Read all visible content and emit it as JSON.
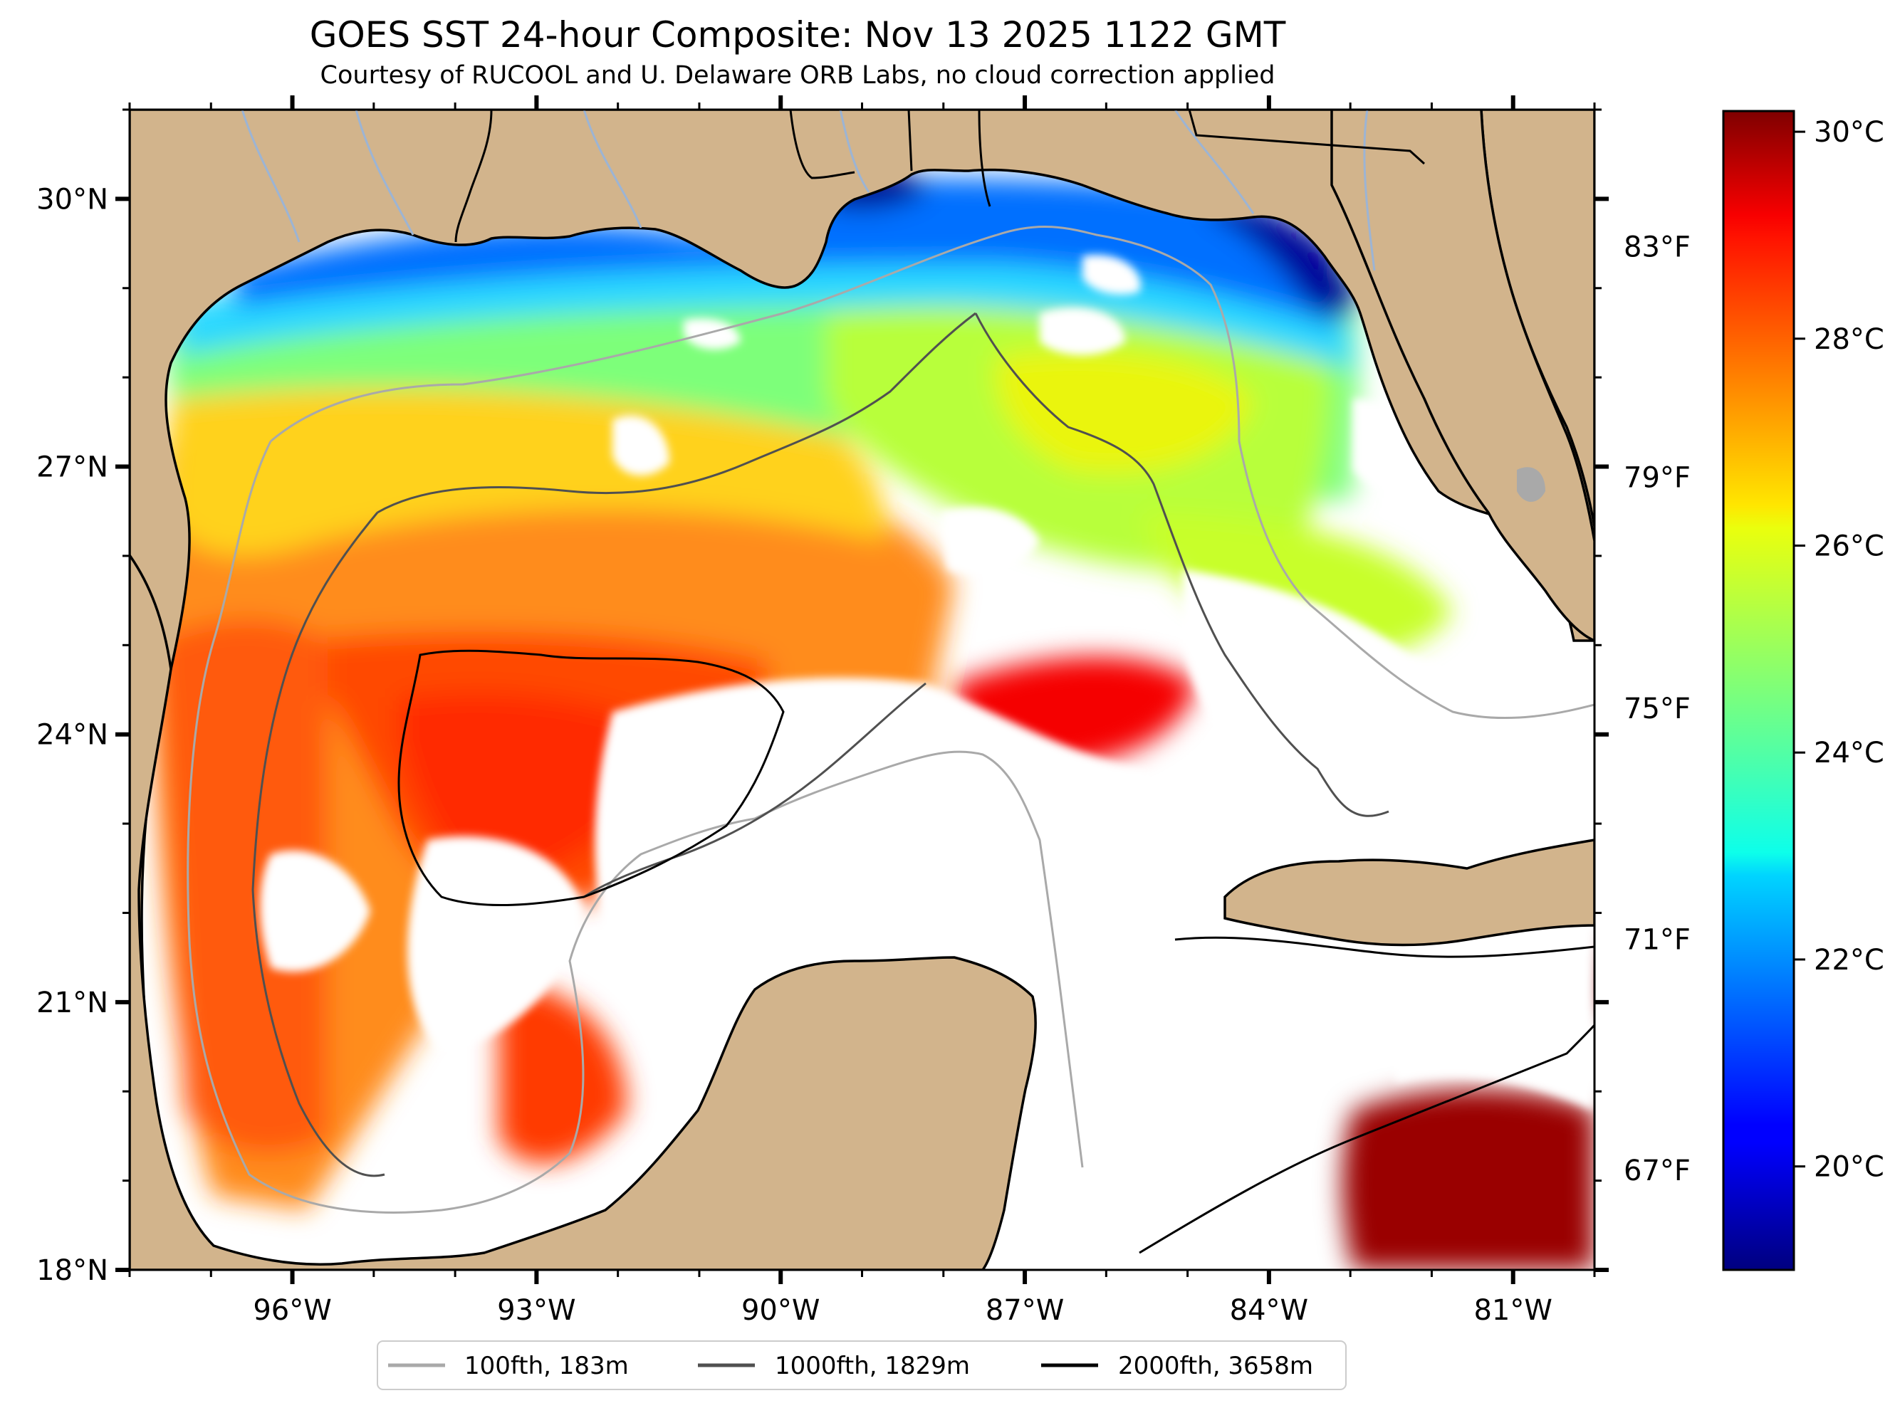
{
  "figure": {
    "title": "GOES SST 24-hour Composite: Nov 13 2025 1122 GMT",
    "subtitle": "Courtesy of RUCOOL and U. Delaware ORB Labs, no cloud correction applied"
  },
  "map": {
    "lon_range": [
      -98,
      -80
    ],
    "lat_range": [
      18,
      31
    ],
    "lat_ticks": [
      {
        "value": 30,
        "label": "30°N"
      },
      {
        "value": 27,
        "label": "27°N"
      },
      {
        "value": 24,
        "label": "24°N"
      },
      {
        "value": 21,
        "label": "21°N"
      },
      {
        "value": 18,
        "label": "18°N"
      }
    ],
    "lon_ticks": [
      {
        "value": -96,
        "label": "96°W"
      },
      {
        "value": -93,
        "label": "93°W"
      },
      {
        "value": -90,
        "label": "90°W"
      },
      {
        "value": -87,
        "label": "87°W"
      },
      {
        "value": -84,
        "label": "84°W"
      },
      {
        "value": -81,
        "label": "81°W"
      }
    ],
    "fahrenheit_ticks": [
      {
        "label": "83°F",
        "pos": 0.882
      },
      {
        "label": "79°F",
        "pos": 0.683
      },
      {
        "label": "75°F",
        "pos": 0.484
      },
      {
        "label": "71°F",
        "pos": 0.285
      },
      {
        "label": "67°F",
        "pos": 0.086
      }
    ],
    "land_color": "#D2B48C",
    "no_data_color": "#FFFFFF",
    "river_color": "#9CB4D4"
  },
  "colorbar": {
    "min_c": 19.0,
    "max_c": 30.2,
    "colormap": "jet",
    "ticks": [
      {
        "value": 30,
        "label": "30°C"
      },
      {
        "value": 28,
        "label": "28°C"
      },
      {
        "value": 26,
        "label": "26°C"
      },
      {
        "value": 24,
        "label": "24°C"
      },
      {
        "value": 22,
        "label": "22°C"
      },
      {
        "value": 20,
        "label": "20°C"
      }
    ]
  },
  "legend": {
    "entries": [
      {
        "label": "100fth, 183m",
        "color": "#A9A9A9"
      },
      {
        "label": "1000fth, 1829m",
        "color": "#505050"
      },
      {
        "label": "2000fth, 3658m",
        "color": "#000000"
      }
    ]
  }
}
